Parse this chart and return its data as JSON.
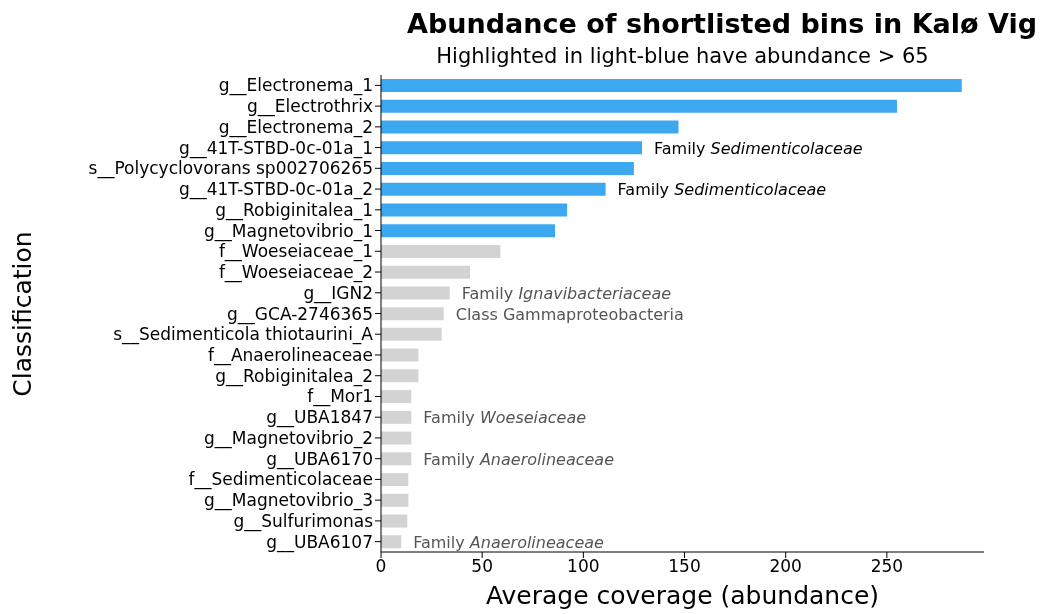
{
  "chart_data": {
    "type": "bar",
    "orientation": "horizontal",
    "title": "Abundance of shortlisted bins in Kalø Vig",
    "subtitle": "Highlighted in light-blue have abundance > 65",
    "xlabel": "Average coverage (abundance)",
    "ylabel": "Classification",
    "categories": [
      "g__Electronema_1",
      "g__Electrothrix",
      "g__Electronema_2",
      "g__41T-STBD-0c-01a_1",
      "s__Polycyclovorans sp002706265",
      "g__41T-STBD-0c-01a_2",
      "g__Robiginitalea_1",
      "g__Magnetovibrio_1",
      "f__Woeseiaceae_1",
      "f__Woeseiaceae_2",
      "g__IGN2",
      "g__GCA-2746365",
      "s__Sedimenticola thiotaurini_A",
      "f__Anaerolineaceae",
      "g__Robiginitalea_2",
      "f__Mor1",
      "g__UBA1847",
      "g__Magnetovibrio_2",
      "g__UBA6170",
      "f__Sedimenticolaceae",
      "g__Magnetovibrio_3",
      "g__Sulfurimonas",
      "g__UBA6107"
    ],
    "values": [
      287,
      255,
      147,
      129,
      125,
      111,
      92,
      86,
      59,
      44,
      34,
      31,
      30,
      18.5,
      18.5,
      15,
      15,
      15,
      15,
      13.5,
      13.5,
      13,
      10
    ],
    "colors": [
      "#3ca8f0",
      "#3ca8f0",
      "#3ca8f0",
      "#3ca8f0",
      "#3ca8f0",
      "#3ca8f0",
      "#3ca8f0",
      "#3ca8f0",
      "#d3d3d3",
      "#d3d3d3",
      "#d3d3d3",
      "#d3d3d3",
      "#d3d3d3",
      "#d3d3d3",
      "#d3d3d3",
      "#d3d3d3",
      "#d3d3d3",
      "#d3d3d3",
      "#d3d3d3",
      "#d3d3d3",
      "#d3d3d3",
      "#d3d3d3",
      "#d3d3d3"
    ],
    "xlim": [
      0,
      298
    ],
    "xticks": [
      0,
      50,
      100,
      150,
      200,
      250
    ],
    "annotations": [
      {
        "text": "Family Sedimenticolaceae",
        "x": 129,
        "y": "g__41T-STBD-0c-01a_1"
      },
      {
        "text": "Family Sedimenticolaceae",
        "x": 111,
        "y": "g__41T-STBD-0c-01a_2"
      },
      {
        "text": "Family Ignavibacteriaceae",
        "x": 34,
        "y": "g__IGN2"
      },
      {
        "text": "Class Gammaproteobacteria",
        "x": 31,
        "y": "g__GCA-2746365"
      },
      {
        "text": "Family Woeseiaceae",
        "x": 15,
        "y": "g__UBA1847"
      },
      {
        "text": "Family Anaerolineaceae",
        "x": 15,
        "y": "g__UBA6170"
      },
      {
        "text": "Family Anaerolineaceae",
        "x": 10,
        "y": "g__UBA6107"
      }
    ]
  }
}
